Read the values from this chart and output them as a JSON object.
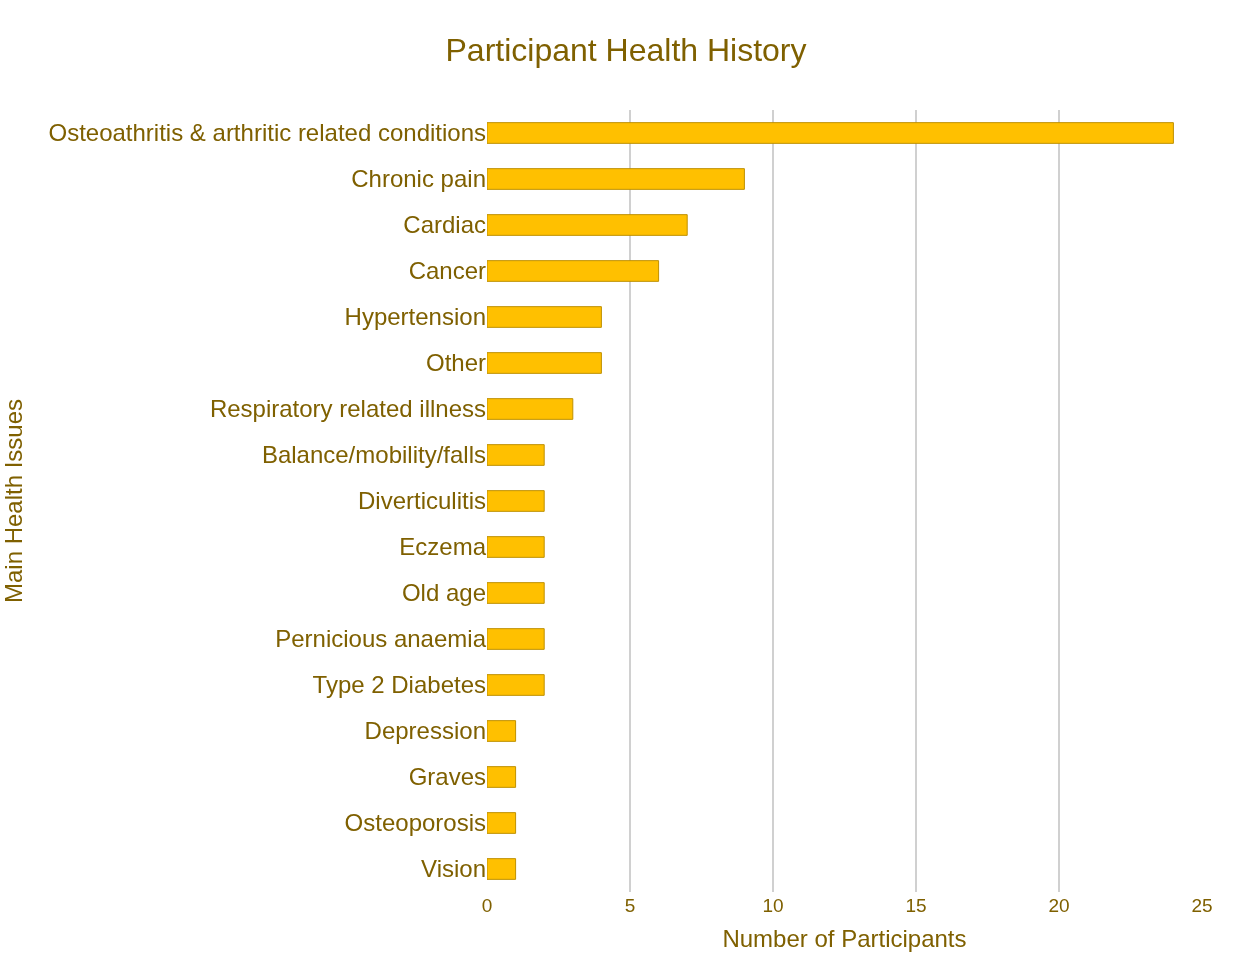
{
  "chart_data": {
    "type": "bar",
    "orientation": "horizontal",
    "title": "Participant Health History",
    "xlabel": "Number of Participants",
    "ylabel": "Main Health Issues",
    "categories": [
      "Osteoathritis & arthritic related conditions",
      "Chronic pain",
      "Cardiac",
      "Cancer",
      "Hypertension",
      "Other",
      "Respiratory related illness",
      "Balance/mobility/falls",
      "Diverticulitis",
      "Eczema",
      "Old age",
      "Pernicious anaemia",
      "Type 2 Diabetes",
      "Depression",
      "Graves",
      "Osteoporosis",
      "Vision"
    ],
    "values": [
      24,
      9,
      7,
      6,
      4,
      4,
      3,
      2,
      2,
      2,
      2,
      2,
      2,
      1,
      1,
      1,
      1
    ],
    "color": "#ffc000",
    "xlim": [
      0,
      25
    ],
    "xticks": [
      0,
      5,
      10,
      15,
      20,
      25
    ],
    "grid": "x",
    "legend": false
  }
}
